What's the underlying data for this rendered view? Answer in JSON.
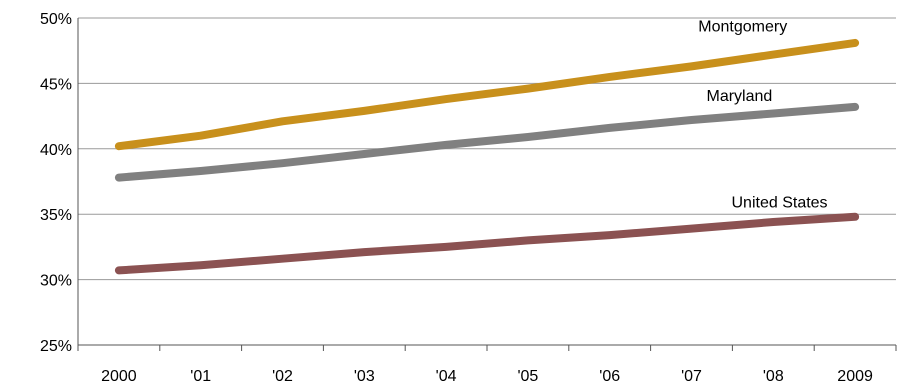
{
  "chart_data": {
    "type": "line",
    "title": "",
    "xlabel": "",
    "ylabel": "",
    "categories": [
      "2000",
      "'01",
      "'02",
      "'03",
      "'04",
      "'05",
      "'06",
      "'07",
      "'08",
      "2009"
    ],
    "ylim": [
      25,
      50
    ],
    "yticks": [
      25,
      30,
      35,
      40,
      45,
      50
    ],
    "ytick_labels": [
      "25%",
      "30%",
      "35%",
      "40%",
      "45%",
      "50%"
    ],
    "grid": true,
    "legend": "direct labels",
    "series": [
      {
        "name": "Montgomery",
        "color": "#C8901C",
        "values": [
          40.2,
          41.0,
          42.1,
          42.9,
          43.8,
          44.6,
          45.5,
          46.3,
          47.2,
          48.1
        ]
      },
      {
        "name": "Maryland",
        "color": "#808080",
        "values": [
          37.8,
          38.3,
          38.9,
          39.6,
          40.3,
          40.9,
          41.6,
          42.2,
          42.7,
          43.2
        ]
      },
      {
        "name": "United States",
        "color": "#8B5252",
        "values": [
          30.7,
          31.1,
          31.6,
          32.1,
          32.5,
          33.0,
          33.4,
          33.9,
          34.4,
          34.8
        ]
      }
    ]
  }
}
